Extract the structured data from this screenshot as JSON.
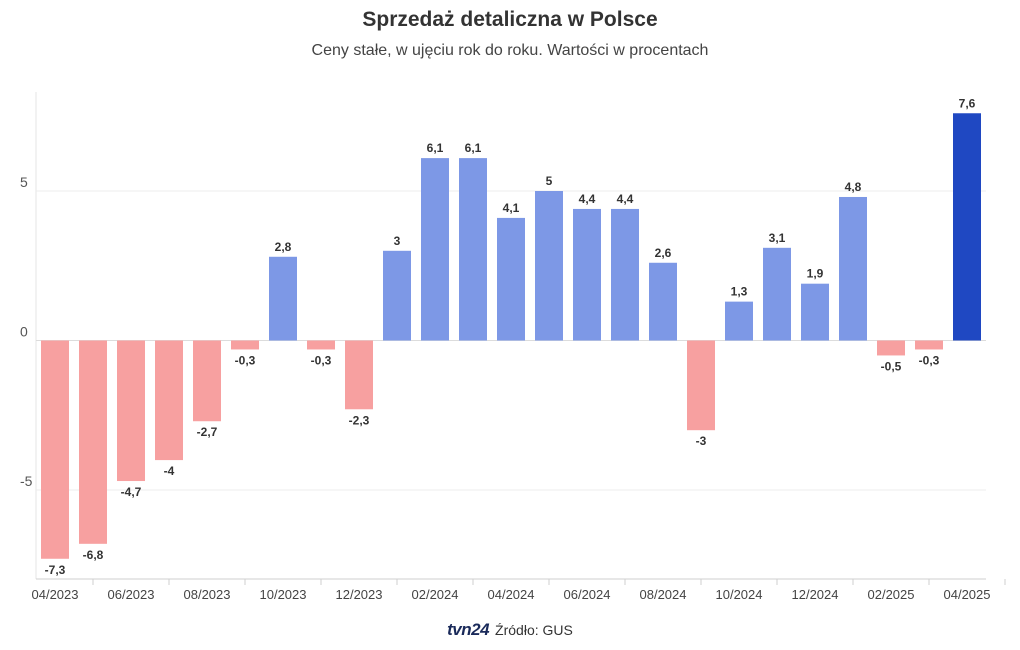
{
  "chart_data": {
    "type": "bar",
    "title": "Sprzedaż detaliczna w Polsce",
    "subtitle": "Ceny stałe, w ujęciu rok do roku. Wartości w procentach",
    "categories": [
      "04/2023",
      "05/2023",
      "06/2023",
      "07/2023",
      "08/2023",
      "09/2023",
      "10/2023",
      "11/2023",
      "12/2023",
      "01/2024",
      "02/2024",
      "03/2024",
      "04/2024",
      "05/2024",
      "06/2024",
      "07/2024",
      "08/2024",
      "09/2024",
      "10/2024",
      "11/2024",
      "12/2024",
      "01/2025",
      "02/2025",
      "03/2025",
      "04/2025"
    ],
    "tick_labels": [
      "04/2023",
      "06/2023",
      "08/2023",
      "10/2023",
      "12/2023",
      "02/2024",
      "04/2024",
      "06/2024",
      "08/2024",
      "10/2024",
      "12/2024",
      "02/2025",
      "04/2025"
    ],
    "values": [
      -7.3,
      -6.8,
      -4.7,
      -4,
      -2.7,
      -0.3,
      2.8,
      -0.3,
      -2.3,
      3,
      6.1,
      6.1,
      4.1,
      5,
      4.4,
      4.4,
      2.6,
      -3,
      1.3,
      3.1,
      1.9,
      4.8,
      -0.5,
      -0.3,
      7.6
    ],
    "value_labels": [
      "-7,3",
      "-6,8",
      "-4,7",
      "-4",
      "-2,7",
      "-0,3",
      "2,8",
      "-0,3",
      "-2,3",
      "3",
      "6,1",
      "6,1",
      "4,1",
      "5",
      "4,4",
      "4,4",
      "2,6",
      "-3",
      "1,3",
      "3,1",
      "1,9",
      "4,8",
      "-0,5",
      "-0,3",
      "7,6"
    ],
    "y_ticks": [
      -5,
      0,
      5
    ],
    "y_tick_labels": [
      "-5",
      "0",
      "5"
    ],
    "ylim": [
      -8,
      8.2
    ],
    "grid": true,
    "colors": {
      "negative": "#f7a0a0",
      "positive": "#7d98e6",
      "latest": "#1f48c2"
    }
  },
  "footer": {
    "logo": "tvn24",
    "source": "Źródło: GUS"
  }
}
